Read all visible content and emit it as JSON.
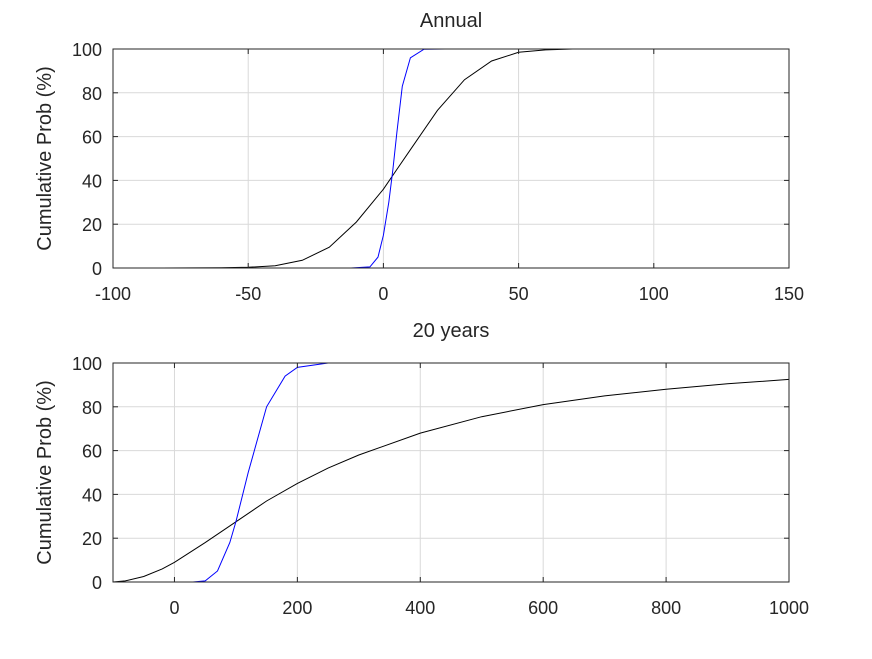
{
  "chart_data": [
    {
      "type": "line",
      "title": "Annual",
      "ylabel": "Cumulative Prob (%)",
      "xlabel": "",
      "xlim": [
        -100,
        150
      ],
      "ylim": [
        0,
        100
      ],
      "xticks": [
        -100,
        -50,
        0,
        50,
        100,
        150
      ],
      "yticks": [
        0,
        20,
        40,
        60,
        80,
        100
      ],
      "xtick_labels": [
        "-100",
        "-50",
        "0",
        "50",
        "100",
        "150"
      ],
      "ytick_labels": [
        "0",
        "20",
        "40",
        "60",
        "80",
        "100"
      ],
      "grid": true,
      "series": [
        {
          "color": "#000000",
          "x": [
            -82,
            -60,
            -50,
            -40,
            -30,
            -20,
            -10,
            0,
            5,
            10,
            20,
            30,
            40,
            50,
            60,
            70,
            100
          ],
          "values": [
            0,
            0.1,
            0.3,
            1,
            3.5,
            9.5,
            21,
            36,
            45,
            54,
            72,
            86,
            94.5,
            98.5,
            99.6,
            100,
            100
          ]
        },
        {
          "color": "#0000ff",
          "x": [
            -12,
            -5,
            -2,
            0,
            2,
            3.5,
            5,
            7,
            10,
            15,
            23
          ],
          "values": [
            0,
            0.5,
            5,
            15,
            30,
            45,
            62,
            83,
            96,
            99.9,
            100
          ]
        }
      ]
    },
    {
      "type": "line",
      "title": "20 years",
      "ylabel": "Cumulative Prob (%)",
      "xlabel": "",
      "xlim": [
        -100,
        1000
      ],
      "ylim": [
        0,
        100
      ],
      "xticks": [
        0,
        200,
        400,
        600,
        800,
        1000
      ],
      "yticks": [
        0,
        20,
        40,
        60,
        80,
        100
      ],
      "xtick_labels": [
        "0",
        "200",
        "400",
        "600",
        "800",
        "1000"
      ],
      "ytick_labels": [
        "0",
        "20",
        "40",
        "60",
        "80",
        "100"
      ],
      "grid": true,
      "series": [
        {
          "color": "#000000",
          "x": [
            -100,
            -80,
            -50,
            -20,
            0,
            50,
            100,
            150,
            200,
            250,
            300,
            400,
            500,
            600,
            700,
            800,
            900,
            1000
          ],
          "values": [
            0,
            0.5,
            2.5,
            6,
            9,
            18,
            27.5,
            37,
            45,
            52,
            58,
            68,
            75.5,
            81,
            85,
            88,
            90.5,
            92.5
          ]
        },
        {
          "color": "#0000ff",
          "x": [
            0,
            30,
            50,
            70,
            90,
            100,
            120,
            150,
            180,
            200,
            250,
            300,
            400
          ],
          "values": [
            0,
            0,
            0.5,
            5,
            18,
            27.5,
            50,
            80,
            94,
            98,
            100,
            100,
            100
          ]
        }
      ]
    }
  ]
}
